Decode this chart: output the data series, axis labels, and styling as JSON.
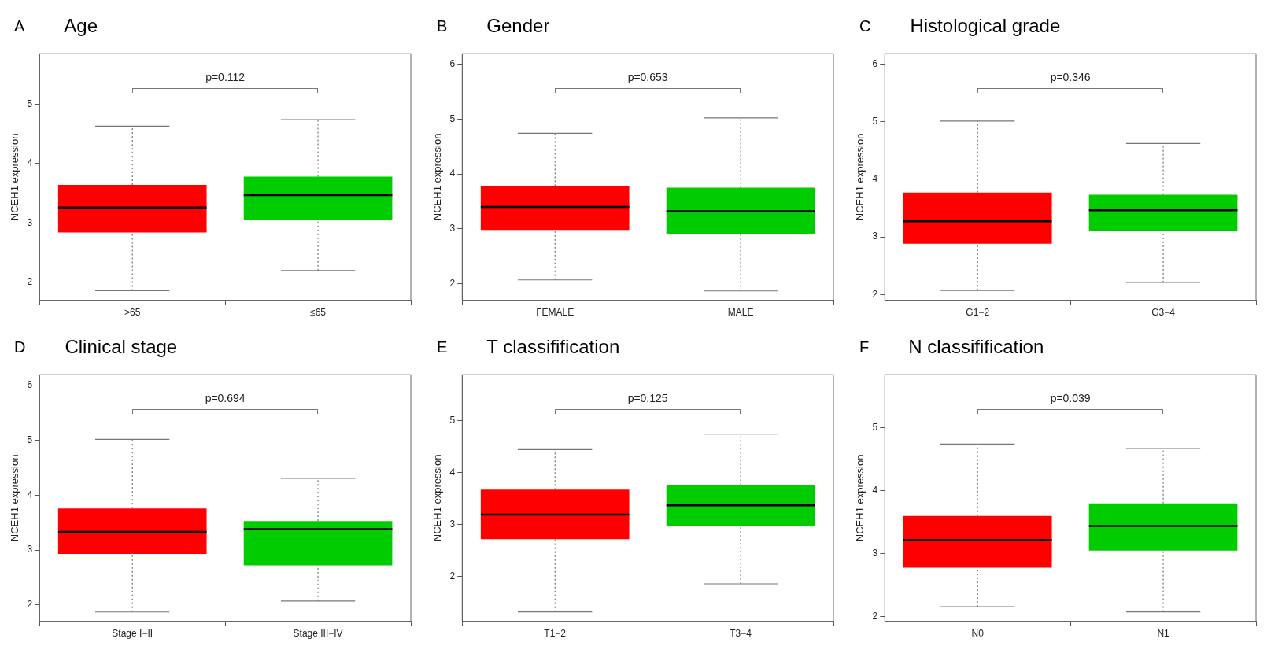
{
  "chart_data": [
    {
      "type": "box",
      "title": "Age",
      "ylabel": "NCEH1 expression",
      "categories": [
        ">65",
        "≤65"
      ],
      "colors": [
        "#ff0000",
        "#00cc00"
      ],
      "ylim": [
        1.7,
        5.85
      ],
      "yticks": [
        2,
        3,
        4,
        5
      ],
      "annotations": [
        "A",
        "p=0.112"
      ],
      "boxes": [
        {
          "low": 1.86,
          "q1": 2.84,
          "median": 3.26,
          "q3": 3.64,
          "high": 4.63
        },
        {
          "low": 2.2,
          "q1": 3.05,
          "median": 3.47,
          "q3": 3.78,
          "high": 4.74
        }
      ]
    },
    {
      "type": "box",
      "title": "Gender",
      "ylabel": "NCEH1 expression",
      "categories": [
        "FEMALE",
        "MALE"
      ],
      "colors": [
        "#ff0000",
        "#00cc00"
      ],
      "ylim": [
        1.7,
        6.19
      ],
      "yticks": [
        2,
        3,
        4,
        5,
        6
      ],
      "annotations": [
        "B",
        "p=0.653"
      ],
      "boxes": [
        {
          "low": 2.07,
          "q1": 2.98,
          "median": 3.4,
          "q3": 3.78,
          "high": 4.74
        },
        {
          "low": 1.87,
          "q1": 2.9,
          "median": 3.32,
          "q3": 3.75,
          "high": 5.02
        }
      ]
    },
    {
      "type": "box",
      "title": "Histological grade",
      "ylabel": "NCEH1 expression",
      "categories": [
        "G1−2",
        "G3−4"
      ],
      "colors": [
        "#ff0000",
        "#00cc00"
      ],
      "ylim": [
        1.9,
        6.18
      ],
      "yticks": [
        2,
        3,
        4,
        5,
        6
      ],
      "annotations": [
        "C",
        "p=0.346"
      ],
      "boxes": [
        {
          "low": 2.07,
          "q1": 2.88,
          "median": 3.27,
          "q3": 3.77,
          "high": 5.01
        },
        {
          "low": 2.21,
          "q1": 3.11,
          "median": 3.46,
          "q3": 3.73,
          "high": 4.62
        }
      ]
    },
    {
      "type": "box",
      "title": "Clinical stage",
      "ylabel": "NCEH1 expression",
      "categories": [
        "Stage I−II",
        "Stage III−IV"
      ],
      "colors": [
        "#ff0000",
        "#00cc00"
      ],
      "ylim": [
        1.7,
        6.2
      ],
      "yticks": [
        2,
        3,
        4,
        5,
        6
      ],
      "annotations": [
        "D",
        "p=0.694"
      ],
      "boxes": [
        {
          "low": 1.87,
          "q1": 2.93,
          "median": 3.33,
          "q3": 3.76,
          "high": 5.02
        },
        {
          "low": 2.07,
          "q1": 2.72,
          "median": 3.38,
          "q3": 3.53,
          "high": 4.31
        }
      ]
    },
    {
      "type": "box",
      "title": "T classifification",
      "ylabel": "NCEH1 expression",
      "categories": [
        "T1−2",
        "T3−4"
      ],
      "colors": [
        "#ff0000",
        "#00cc00"
      ],
      "ylim": [
        1.14,
        5.88
      ],
      "yticks": [
        2,
        3,
        4,
        5
      ],
      "annotations": [
        "E",
        "p=0.125"
      ],
      "boxes": [
        {
          "low": 1.32,
          "q1": 2.72,
          "median": 3.19,
          "q3": 3.67,
          "high": 4.44
        },
        {
          "low": 1.86,
          "q1": 2.97,
          "median": 3.37,
          "q3": 3.76,
          "high": 4.74
        }
      ]
    },
    {
      "type": "box",
      "title": "N classifification",
      "ylabel": "NCEH1 expression",
      "categories": [
        "N0",
        "N1"
      ],
      "colors": [
        "#ff0000",
        "#00cc00"
      ],
      "ylim": [
        1.93,
        5.84
      ],
      "yticks": [
        2,
        3,
        4,
        5
      ],
      "annotations": [
        "F",
        "p=0.039"
      ],
      "boxes": [
        {
          "low": 2.16,
          "q1": 2.78,
          "median": 3.22,
          "q3": 3.6,
          "high": 4.74
        },
        {
          "low": 2.08,
          "q1": 3.05,
          "median": 3.44,
          "q3": 3.8,
          "high": 4.67
        }
      ]
    }
  ]
}
